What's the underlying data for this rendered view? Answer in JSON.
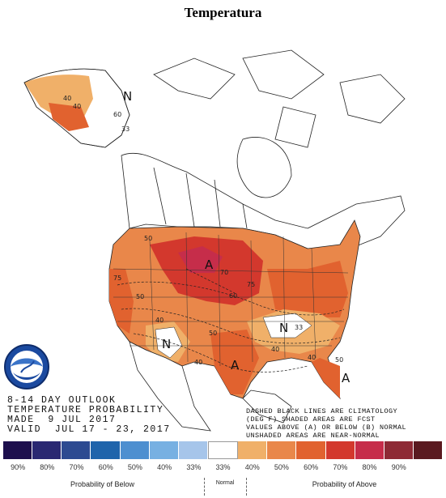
{
  "header": {
    "title": "Temperatura"
  },
  "outlook": {
    "line1": "8-14 DAY OUTLOOK",
    "line2": "TEMPERATURE PROBABILITY",
    "line3": "MADE  9 JUL 2017",
    "line4": "VALID  JUL 17 - 23, 2017"
  },
  "note": {
    "line1": "DASHED BLACK LINES ARE CLIMATOLOGY",
    "line2": "(DEG F) SHADED AREAS ARE FCST",
    "line3": "VALUES ABOVE (A) OR BELOW (B) NORMAL",
    "line4": "UNSHADED AREAS ARE NEAR-NORMAL"
  },
  "legend": {
    "swatches": [
      {
        "label": "90%",
        "color": "#1d0f4d"
      },
      {
        "label": "80%",
        "color": "#2a2872"
      },
      {
        "label": "70%",
        "color": "#2d4a91"
      },
      {
        "label": "60%",
        "color": "#1f64ab"
      },
      {
        "label": "50%",
        "color": "#4d8fd0"
      },
      {
        "label": "40%",
        "color": "#77b0e2"
      },
      {
        "label": "33%",
        "color": "#a6c5ea"
      },
      {
        "label": "33%",
        "color": "#ffffff"
      },
      {
        "label": "40%",
        "color": "#f0b069"
      },
      {
        "label": "50%",
        "color": "#e9874a"
      },
      {
        "label": "60%",
        "color": "#e1622f"
      },
      {
        "label": "70%",
        "color": "#d3382d"
      },
      {
        "label": "80%",
        "color": "#c62d4a"
      },
      {
        "label": "90%",
        "color": "#8e2a35"
      },
      {
        "label": "",
        "color": "#5a1a20"
      }
    ],
    "below_label": "Probability of Below",
    "normal_label": "Normal",
    "above_label": "Probability of Above"
  },
  "map": {
    "labels": {
      "N_alaska": "N",
      "A_plains": "A",
      "A_texas": "A",
      "A_florida": "A",
      "N_sw": "N",
      "N_southeast": "N"
    },
    "climo": [
      "40",
      "40",
      "60",
      "33",
      "50",
      "70",
      "75",
      "60",
      "75",
      "50",
      "40",
      "50",
      "40",
      "33",
      "40",
      "50",
      "40"
    ]
  },
  "logo": {
    "text": "NOAA"
  }
}
